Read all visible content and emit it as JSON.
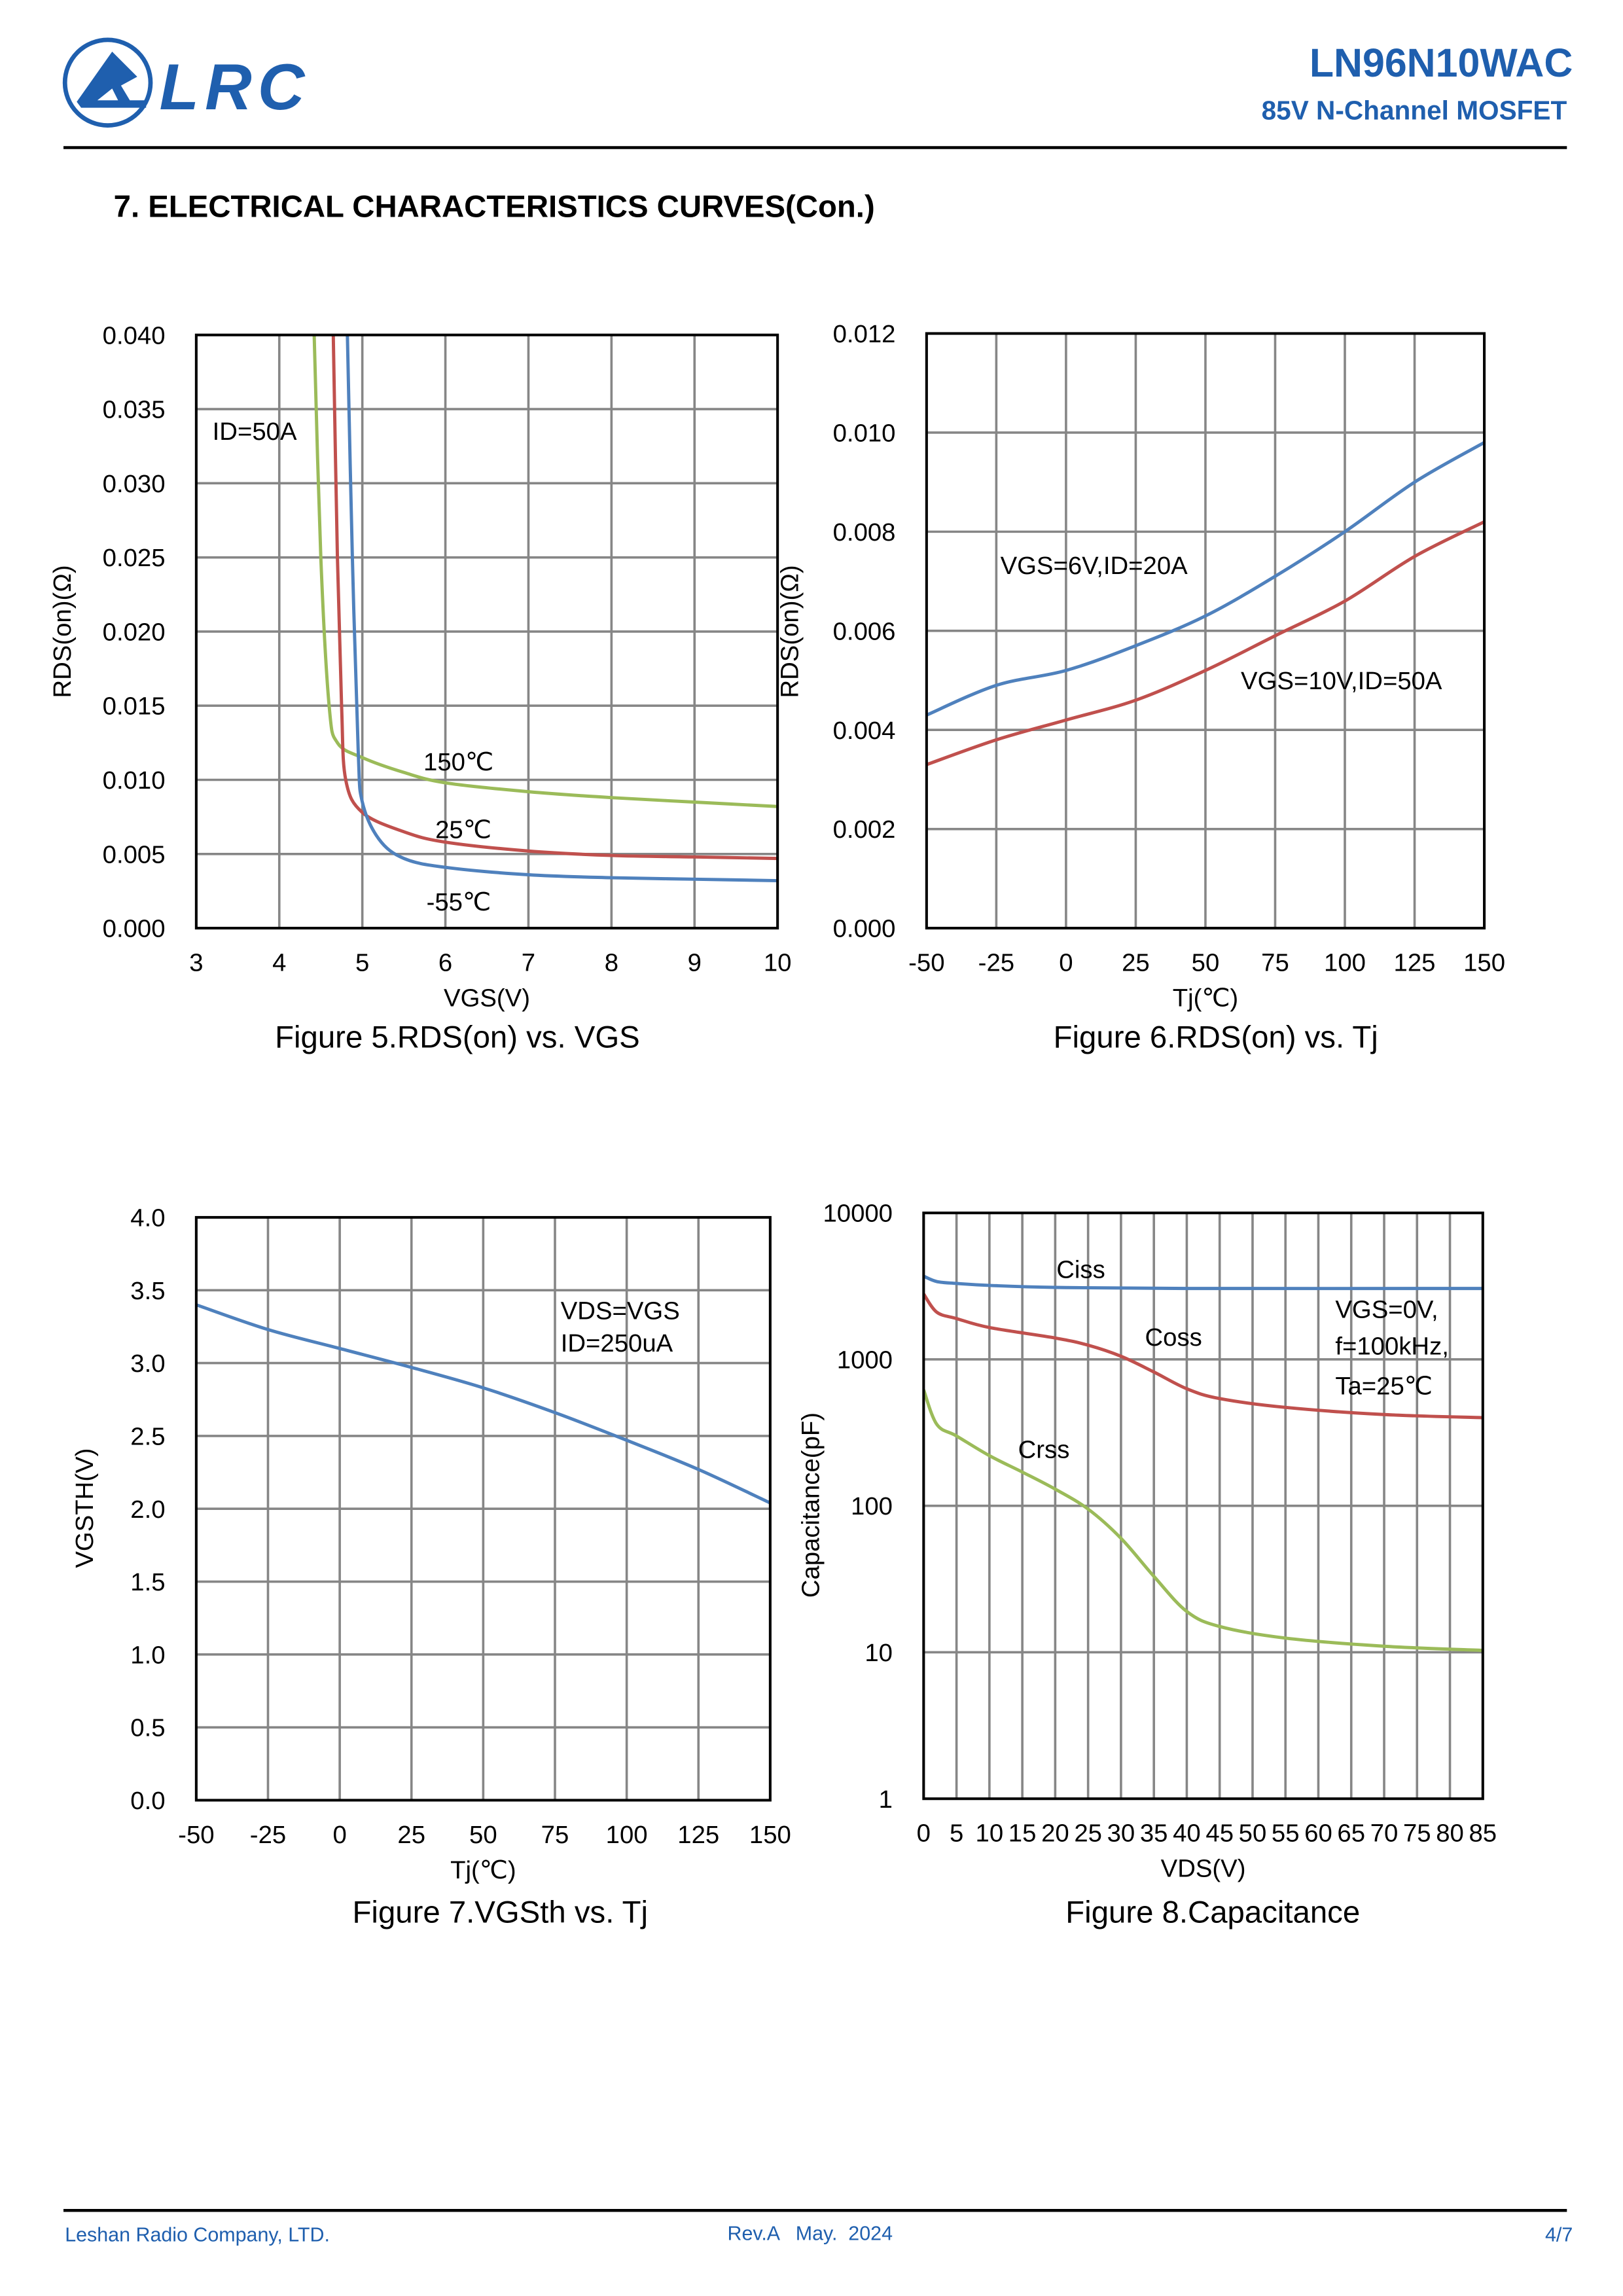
{
  "header": {
    "logo_text": "LRC",
    "part_number": "LN96N10WAC",
    "subtitle": "85V N-Channel MOSFET",
    "brand_color": "#1f5fae"
  },
  "section_title": "7. ELECTRICAL CHARACTERISTICS CURVES(Con.)",
  "footer": {
    "company": "Leshan Radio Company, LTD.",
    "revision": "Rev.A   May.  2024",
    "page": "4/7",
    "color": "#1f5fae"
  },
  "chart_data": [
    {
      "type": "line",
      "caption": "Figure 5.RDS(on) vs. VGS",
      "xlabel": "VGS(V)",
      "ylabel": "RDS(on)(Ω)",
      "xlim": [
        3,
        10
      ],
      "ylim": [
        0,
        0.04
      ],
      "xticks": [
        "3",
        "4",
        "5",
        "6",
        "7",
        "8",
        "9",
        "10"
      ],
      "yticks": [
        "0.000",
        "0.005",
        "0.010",
        "0.015",
        "0.020",
        "0.025",
        "0.030",
        "0.035",
        "0.040"
      ],
      "grid": true,
      "annotations": [
        "ID=50A",
        "150℃",
        "25℃",
        "-55℃"
      ],
      "series": [
        {
          "name": "150℃",
          "color": "#9bbb59",
          "x": [
            4.42,
            4.5,
            4.6,
            4.7,
            5,
            5.5,
            6,
            7,
            8,
            9,
            10
          ],
          "y": [
            0.04,
            0.025,
            0.015,
            0.0125,
            0.0115,
            0.0105,
            0.0098,
            0.0092,
            0.0088,
            0.0085,
            0.0082
          ]
        },
        {
          "name": "25℃",
          "color": "#c0504d",
          "x": [
            4.65,
            4.7,
            4.75,
            4.8,
            5,
            5.5,
            6,
            7,
            8,
            9,
            10
          ],
          "y": [
            0.04,
            0.025,
            0.015,
            0.01,
            0.0078,
            0.0065,
            0.0058,
            0.0052,
            0.0049,
            0.0048,
            0.0047
          ]
        },
        {
          "name": "-55℃",
          "color": "#4f81bd",
          "x": [
            4.82,
            4.88,
            4.95,
            5.0,
            5.2,
            5.5,
            6,
            7,
            8,
            9,
            10
          ],
          "y": [
            0.04,
            0.025,
            0.012,
            0.0085,
            0.006,
            0.0047,
            0.0041,
            0.0036,
            0.0034,
            0.0033,
            0.0032
          ]
        }
      ]
    },
    {
      "type": "line",
      "caption": "Figure 6.RDS(on) vs. Tj",
      "xlabel": "Tj(℃)",
      "ylabel": "RDS(on)(Ω)",
      "xlim": [
        -50,
        150
      ],
      "ylim": [
        0,
        0.012
      ],
      "xticks": [
        "-50",
        "-25",
        "0",
        "25",
        "50",
        "75",
        "100",
        "125",
        "150"
      ],
      "yticks": [
        "0.000",
        "0.002",
        "0.004",
        "0.006",
        "0.008",
        "0.010",
        "0.012"
      ],
      "grid": true,
      "annotations": [
        "VGS=6V,ID=20A",
        "VGS=10V,ID=50A"
      ],
      "series": [
        {
          "name": "VGS=6V,ID=20A",
          "color": "#4f81bd",
          "x": [
            -50,
            -25,
            0,
            25,
            50,
            75,
            100,
            125,
            150
          ],
          "y": [
            0.0043,
            0.0049,
            0.0052,
            0.0057,
            0.0063,
            0.0071,
            0.008,
            0.009,
            0.0098
          ]
        },
        {
          "name": "VGS=10V,ID=50A",
          "color": "#c0504d",
          "x": [
            -50,
            -25,
            0,
            25,
            50,
            75,
            100,
            125,
            150
          ],
          "y": [
            0.0033,
            0.0038,
            0.0042,
            0.0046,
            0.0052,
            0.0059,
            0.0066,
            0.0075,
            0.0082
          ]
        }
      ]
    },
    {
      "type": "line",
      "caption": "Figure 7.VGSth vs. Tj",
      "xlabel": "Tj(℃)",
      "ylabel": "VGSTH(V)",
      "xlim": [
        -50,
        150
      ],
      "ylim": [
        0,
        4
      ],
      "xticks": [
        "-50",
        "-25",
        "0",
        "25",
        "50",
        "75",
        "100",
        "125",
        "150"
      ],
      "yticks": [
        "0.0",
        "0.5",
        "1.0",
        "1.5",
        "2.0",
        "2.5",
        "3.0",
        "3.5",
        "4.0"
      ],
      "grid": true,
      "annotations": [
        "VDS=VGS",
        "ID=250uA"
      ],
      "series": [
        {
          "color": "#4f81bd",
          "x": [
            -50,
            -25,
            0,
            25,
            50,
            75,
            100,
            125,
            150
          ],
          "y": [
            3.4,
            3.23,
            3.1,
            2.97,
            2.83,
            2.66,
            2.47,
            2.27,
            2.04
          ]
        }
      ]
    },
    {
      "type": "line",
      "caption": "Figure 8.Capacitance",
      "xlabel": "VDS(V)",
      "ylabel": "Capacitance(pF)",
      "xlim": [
        0,
        85
      ],
      "ylim": [
        1,
        10000
      ],
      "yscale": "log",
      "xticks": [
        "0",
        "5",
        "10",
        "15",
        "20",
        "25",
        "30",
        "35",
        "40",
        "45",
        "50",
        "55",
        "60",
        "65",
        "70",
        "75",
        "80",
        "85"
      ],
      "yticks": [
        "1",
        "10",
        "100",
        "1000",
        "10000"
      ],
      "grid": true,
      "annotations": [
        "Ciss",
        "Coss",
        "Crss",
        "VGS=0V,",
        "f=100kHz,",
        "Ta=25℃"
      ],
      "series": [
        {
          "name": "Ciss",
          "color": "#4f81bd",
          "x": [
            0,
            2,
            5,
            10,
            20,
            40,
            85
          ],
          "y": [
            3700,
            3400,
            3300,
            3200,
            3100,
            3050,
            3050
          ]
        },
        {
          "name": "Coss",
          "color": "#c0504d",
          "x": [
            0,
            2,
            5,
            10,
            20,
            25,
            30,
            35,
            40,
            45,
            55,
            70,
            85
          ],
          "y": [
            2800,
            2100,
            1900,
            1650,
            1400,
            1250,
            1050,
            820,
            630,
            540,
            470,
            420,
            400
          ]
        },
        {
          "name": "Crss",
          "color": "#9bbb59",
          "x": [
            0,
            2,
            5,
            10,
            15,
            20,
            25,
            30,
            35,
            40,
            45,
            55,
            70,
            85
          ],
          "y": [
            620,
            360,
            300,
            220,
            170,
            130,
            95,
            60,
            33,
            19,
            15,
            12.5,
            11,
            10.3
          ]
        }
      ]
    }
  ]
}
